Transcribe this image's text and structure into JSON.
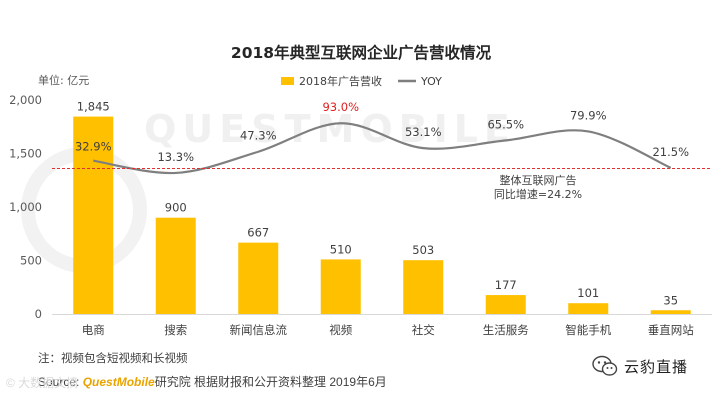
{
  "chart_data": {
    "type": "bar+line",
    "title": "2018年典型互联网企业广告营收情况",
    "ylabel": "单位: 亿元",
    "ylim": [
      0,
      2000
    ],
    "yticks": [
      "0",
      "500",
      "1,000",
      "1,500",
      "2,000"
    ],
    "categories": [
      "电商",
      "搜索",
      "新闻信息流",
      "视频",
      "社交",
      "生活服务",
      "智能手机",
      "垂直网站"
    ],
    "series": [
      {
        "name": "2018年广告营收",
        "type": "bar",
        "color": "#ffc000",
        "values": [
          1845,
          900,
          667,
          510,
          503,
          177,
          101,
          35
        ],
        "labels": [
          "1,845",
          "900",
          "667",
          "510",
          "503",
          "177",
          "101",
          "35"
        ]
      },
      {
        "name": "YOY",
        "type": "line",
        "color": "#7f7f7f",
        "values": [
          32.9,
          13.3,
          47.3,
          93.0,
          53.1,
          65.5,
          79.9,
          21.5
        ],
        "labels": [
          "32.9%",
          "13.3%",
          "47.3%",
          "93.0%",
          "53.1%",
          "65.5%",
          "79.9%",
          "21.5%"
        ],
        "highlight_color": "#e02020"
      }
    ],
    "reference_line": {
      "label_line1": "整体互联网广告",
      "label_line2": "同比增速=24.2%",
      "value": 24.2,
      "color": "#e03030"
    },
    "watermark": "QUESTMOBILE",
    "legend": "top-center"
  },
  "footer": {
    "note": "注：视频包含短视频和长视频",
    "source_prefix": "Source:",
    "source_brand": "QuestMobile",
    "source_rest": "研究院 根据财报和公开资料整理 2019年6月",
    "corner_watermark": "© 大数据文摘",
    "wechat_label": "云豹直播"
  }
}
